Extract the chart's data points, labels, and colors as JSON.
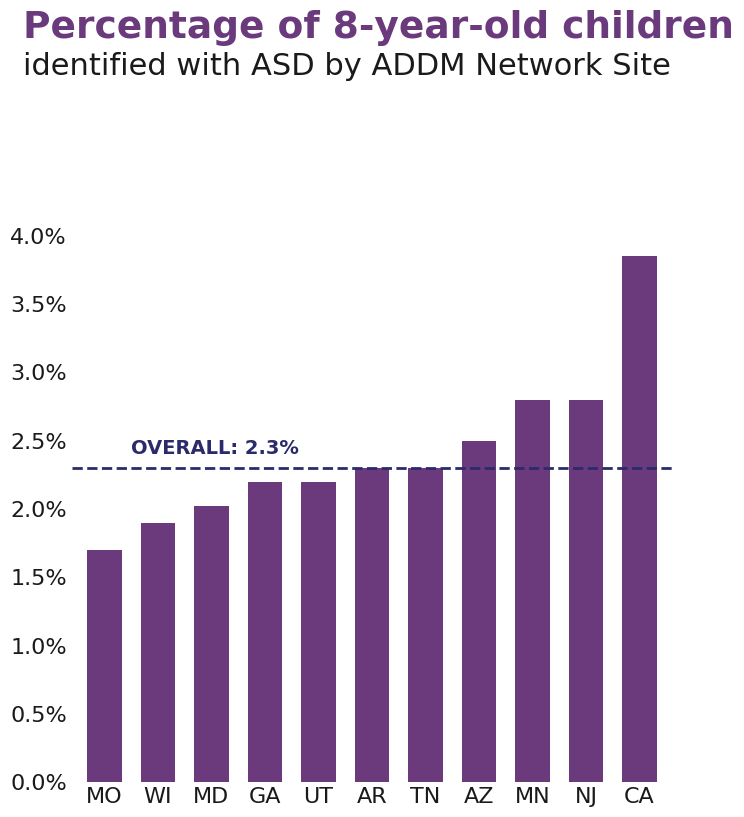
{
  "title_line1": "Percentage of 8-year-old children",
  "title_line2": "identified with ASD by ADDM Network Site",
  "categories": [
    "MO",
    "WI",
    "MD",
    "GA",
    "UT",
    "AR",
    "TN",
    "AZ",
    "MN",
    "NJ",
    "CA"
  ],
  "values": [
    1.7,
    1.9,
    2.02,
    2.2,
    2.2,
    2.3,
    2.3,
    2.5,
    2.8,
    2.8,
    3.85
  ],
  "bar_color": "#6B3A7D",
  "overall_value": 2.3,
  "overall_label": "OVERALL: 2.3%",
  "overall_line_color": "#2B2B6B",
  "ylim": [
    0,
    4.2
  ],
  "yticks": [
    0.0,
    0.5,
    1.0,
    1.5,
    2.0,
    2.5,
    3.0,
    3.5,
    4.0
  ],
  "title_line1_color": "#6B3A7D",
  "title_line2_color": "#1a1a1a",
  "overall_label_color": "#2B2B6B",
  "background_color": "#FFFFFF",
  "title_line1_fontsize": 27,
  "title_line2_fontsize": 22,
  "tick_fontsize": 16,
  "overall_label_fontsize": 14
}
